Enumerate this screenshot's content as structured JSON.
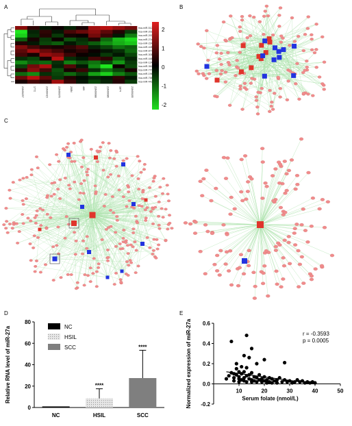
{
  "panels": {
    "a": "A",
    "b": "B",
    "c": "C",
    "d": "D",
    "e": "E"
  },
  "heatmap": {
    "rows": [
      "hsa-miR-512-3p",
      "hsa-miR-20a-5p",
      "hsa-miR-200b-3p",
      "hsa-miR-27a-3p",
      "hsa-miR-224-3p",
      "hsa-miR-4286",
      "hsa-miR-877-5p",
      "hsa-miR-301-3p",
      "hsa-miR-4485",
      "hsa-miR-1246",
      "hsa-miR-3622-3p",
      "hsa-miR-7705",
      "hsa-miR-196-3p",
      "hsa-miR-758-5p",
      "hsa-miR-4436b-3p"
    ],
    "columns": [
      "21N00257",
      "1772",
      "21N00415",
      "21N00376",
      "268N",
      "469",
      "21N00088",
      "21N00086",
      "1874",
      "21N00185"
    ],
    "scale_ticks": [
      "2",
      "1",
      "0",
      "-1",
      "-2"
    ]
  },
  "colors": {
    "hub_red": "#e0352c",
    "node_blue": "#2233e0",
    "node_pink": "#f08c8c",
    "edge_green": "#8fd98f",
    "bar_nc": "#000000",
    "bar_hsil": "#cccccc",
    "bar_scc": "#7f7f7f",
    "heat_high": "#e02020",
    "heat_low": "#20e020"
  },
  "chart_data": [
    {
      "type": "bar",
      "categories": [
        "NC",
        "HSIL",
        "SCC"
      ],
      "values": [
        1.0,
        8.5,
        27.5
      ],
      "errors": [
        0.3,
        9.0,
        26.0
      ],
      "significance": [
        "",
        "****",
        "****"
      ],
      "legend": [
        "NC",
        "HSIL",
        "SCC"
      ],
      "ylabel": "Relative RNA level of miR-27a",
      "ylim": [
        0,
        80
      ],
      "yticks": [
        "0",
        "20",
        "40",
        "60",
        "80"
      ]
    },
    {
      "type": "scatter",
      "xlabel": "Serum folate (nmol/L)",
      "ylabel": "Normalized expression of miR-27a",
      "xlim": [
        0,
        50
      ],
      "ylim": [
        -0.2,
        0.6
      ],
      "xticks": [
        "10",
        "20",
        "30",
        "40",
        "50"
      ],
      "yticks": [
        "-0.2",
        "0.0",
        "0.2",
        "0.4",
        "0.6"
      ],
      "annotation_r": "r = -0.3593",
      "annotation_p": "p = 0.0005",
      "points": [
        [
          5,
          0.05
        ],
        [
          6,
          0.08
        ],
        [
          7,
          0.42
        ],
        [
          7,
          0.11
        ],
        [
          8,
          0.1
        ],
        [
          8,
          0.06
        ],
        [
          8,
          0.03
        ],
        [
          9,
          0.2
        ],
        [
          9,
          0.15
        ],
        [
          9,
          0.09
        ],
        [
          10,
          0.12
        ],
        [
          10,
          0.07
        ],
        [
          10,
          0.05
        ],
        [
          10,
          0.02
        ],
        [
          11,
          0.17
        ],
        [
          11,
          0.1
        ],
        [
          11,
          0.04
        ],
        [
          12,
          0.28
        ],
        [
          12,
          0.12
        ],
        [
          12,
          0.06
        ],
        [
          12,
          0.03
        ],
        [
          13,
          0.48
        ],
        [
          13,
          0.16
        ],
        [
          13,
          0.08
        ],
        [
          13,
          0.02
        ],
        [
          14,
          0.26
        ],
        [
          14,
          0.09
        ],
        [
          14,
          0.05
        ],
        [
          15,
          0.35
        ],
        [
          15,
          0.11
        ],
        [
          15,
          0.04
        ],
        [
          15,
          0.02
        ],
        [
          16,
          0.07
        ],
        [
          16,
          0.03
        ],
        [
          17,
          0.2
        ],
        [
          17,
          0.06
        ],
        [
          17,
          0.02
        ],
        [
          18,
          0.09
        ],
        [
          18,
          0.04
        ],
        [
          19,
          0.05
        ],
        [
          19,
          0.02
        ],
        [
          20,
          0.24
        ],
        [
          20,
          0.07
        ],
        [
          20,
          0.03
        ],
        [
          21,
          0.04
        ],
        [
          21,
          0.01
        ],
        [
          22,
          0.06
        ],
        [
          22,
          0.02
        ],
        [
          23,
          0.05
        ],
        [
          23,
          0.01
        ],
        [
          24,
          0.03
        ],
        [
          25,
          0.04
        ],
        [
          25,
          0.01
        ],
        [
          26,
          0.06
        ],
        [
          27,
          0.02
        ],
        [
          28,
          0.04
        ],
        [
          28,
          0.21
        ],
        [
          29,
          0.02
        ],
        [
          30,
          0.03
        ],
        [
          31,
          0.01
        ],
        [
          32,
          0.02
        ],
        [
          33,
          0.04
        ],
        [
          34,
          0.02
        ],
        [
          35,
          0.03
        ],
        [
          36,
          0.01
        ],
        [
          37,
          0.02
        ],
        [
          38,
          0.01
        ],
        [
          39,
          0.02
        ],
        [
          40,
          0.01
        ]
      ],
      "trend": [
        [
          5,
          0.12
        ],
        [
          40,
          0.0
        ]
      ]
    }
  ]
}
